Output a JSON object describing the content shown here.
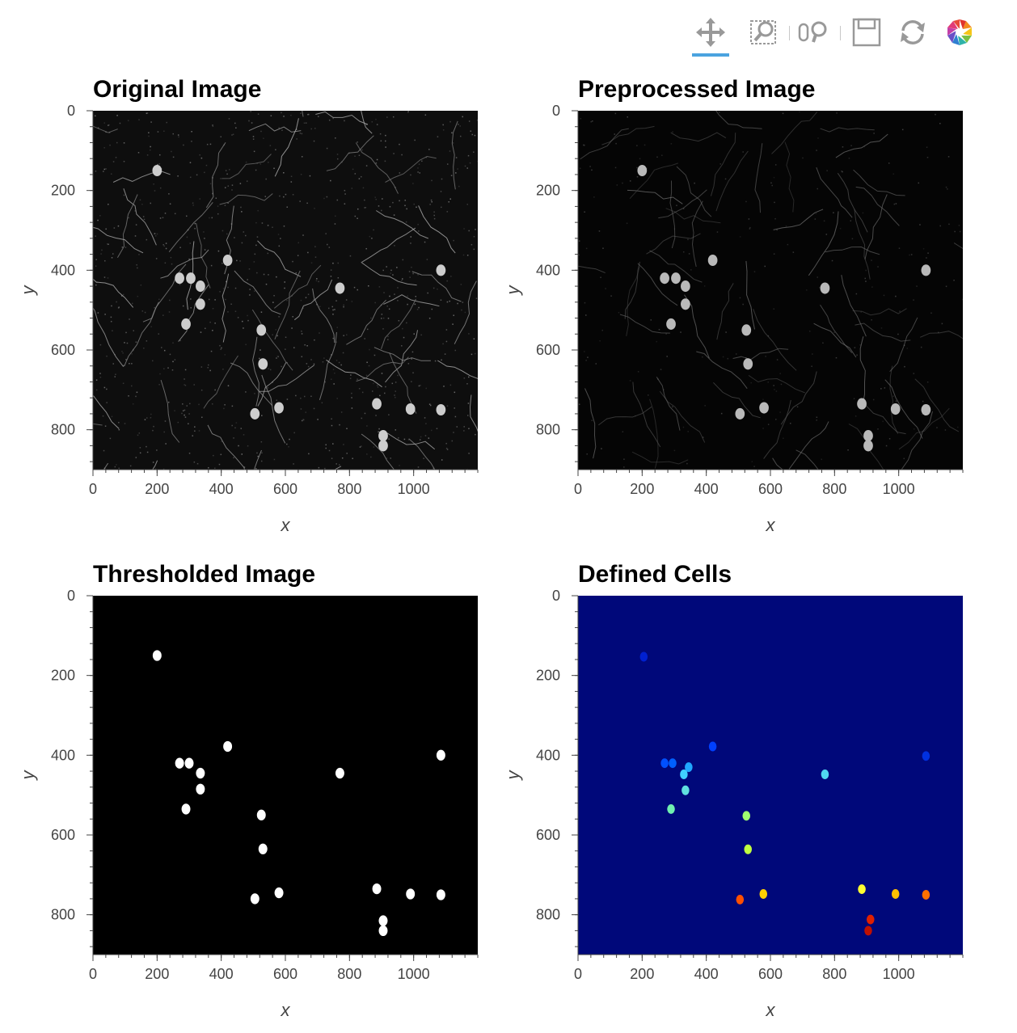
{
  "toolbar": {
    "tools": [
      "pan-tool",
      "box-zoom-tool",
      "wheel-zoom-tool",
      "save-tool",
      "reset-tool",
      "bokeh-logo"
    ],
    "active_tool": "pan-tool",
    "active_color": "#4aa3df",
    "icon_color": "#999999"
  },
  "chart_data": [
    {
      "type": "heatmap",
      "title": "Original Image",
      "xlabel": "x",
      "ylabel": "y",
      "xlim": [
        0,
        1200
      ],
      "ylim": [
        0,
        900
      ],
      "y_inverted": true,
      "xticks": [
        0,
        200,
        400,
        600,
        800,
        1000
      ],
      "yticks": [
        0,
        200,
        400,
        600,
        800
      ],
      "colormap": "gray",
      "background": "#0e0e0e",
      "cells": [
        [
          270,
          420
        ],
        [
          305,
          420
        ],
        [
          335,
          440
        ],
        [
          335,
          485
        ],
        [
          290,
          535
        ],
        [
          420,
          375
        ],
        [
          525,
          550
        ],
        [
          530,
          635
        ],
        [
          580,
          745
        ],
        [
          505,
          760
        ],
        [
          770,
          445
        ],
        [
          1085,
          400
        ],
        [
          885,
          735
        ],
        [
          905,
          815
        ],
        [
          905,
          840
        ],
        [
          990,
          748
        ],
        [
          1085,
          750
        ],
        [
          200,
          150
        ]
      ]
    },
    {
      "type": "heatmap",
      "title": "Preprocessed Image",
      "xlabel": "x",
      "ylabel": "y",
      "xlim": [
        0,
        1200
      ],
      "ylim": [
        0,
        900
      ],
      "y_inverted": true,
      "xticks": [
        0,
        200,
        400,
        600,
        800,
        1000
      ],
      "yticks": [
        0,
        200,
        400,
        600,
        800
      ],
      "colormap": "gray",
      "background": "#050505",
      "cells": [
        [
          270,
          420
        ],
        [
          305,
          420
        ],
        [
          335,
          440
        ],
        [
          335,
          485
        ],
        [
          290,
          535
        ],
        [
          420,
          375
        ],
        [
          525,
          550
        ],
        [
          530,
          635
        ],
        [
          580,
          745
        ],
        [
          505,
          760
        ],
        [
          770,
          445
        ],
        [
          1085,
          400
        ],
        [
          885,
          735
        ],
        [
          905,
          815
        ],
        [
          905,
          840
        ],
        [
          990,
          748
        ],
        [
          1085,
          750
        ],
        [
          200,
          150
        ]
      ]
    },
    {
      "type": "heatmap",
      "title": "Thresholded Image",
      "xlabel": "x",
      "ylabel": "y",
      "xlim": [
        0,
        1200
      ],
      "ylim": [
        0,
        900
      ],
      "y_inverted": true,
      "xticks": [
        0,
        200,
        400,
        600,
        800,
        1000
      ],
      "yticks": [
        0,
        200,
        400,
        600,
        800
      ],
      "colormap": "binary",
      "background": "#000000",
      "cells": [
        [
          270,
          420
        ],
        [
          300,
          420
        ],
        [
          335,
          445
        ],
        [
          335,
          485
        ],
        [
          290,
          535
        ],
        [
          420,
          378
        ],
        [
          525,
          550
        ],
        [
          530,
          635
        ],
        [
          580,
          745
        ],
        [
          505,
          760
        ],
        [
          770,
          445
        ],
        [
          1085,
          400
        ],
        [
          885,
          735
        ],
        [
          905,
          815
        ],
        [
          905,
          840
        ],
        [
          990,
          748
        ],
        [
          1085,
          750
        ],
        [
          200,
          150
        ]
      ]
    },
    {
      "type": "heatmap",
      "title": "Defined Cells",
      "xlabel": "x",
      "ylabel": "y",
      "xlim": [
        0,
        1200
      ],
      "ylim": [
        0,
        900
      ],
      "y_inverted": true,
      "xticks": [
        0,
        200,
        400,
        600,
        800,
        1000
      ],
      "yticks": [
        0,
        200,
        400,
        600,
        800
      ],
      "colormap": "jet",
      "background": "#00087a",
      "labels": [
        {
          "x": 205,
          "y": 153,
          "color": "#0020d0"
        },
        {
          "x": 420,
          "y": 378,
          "color": "#0040ff"
        },
        {
          "x": 270,
          "y": 420,
          "color": "#0050ff"
        },
        {
          "x": 295,
          "y": 420,
          "color": "#0060ff"
        },
        {
          "x": 345,
          "y": 430,
          "color": "#20a8ff"
        },
        {
          "x": 330,
          "y": 448,
          "color": "#40d0ff"
        },
        {
          "x": 335,
          "y": 488,
          "color": "#60e0e0"
        },
        {
          "x": 290,
          "y": 535,
          "color": "#70f0b0"
        },
        {
          "x": 525,
          "y": 552,
          "color": "#a0ff70"
        },
        {
          "x": 530,
          "y": 636,
          "color": "#c0ff40"
        },
        {
          "x": 770,
          "y": 448,
          "color": "#50d8f0"
        },
        {
          "x": 1085,
          "y": 402,
          "color": "#0030e0"
        },
        {
          "x": 885,
          "y": 736,
          "color": "#ffff30"
        },
        {
          "x": 990,
          "y": 748,
          "color": "#ffc000"
        },
        {
          "x": 1085,
          "y": 750,
          "color": "#ff7000"
        },
        {
          "x": 578,
          "y": 748,
          "color": "#ffd000"
        },
        {
          "x": 505,
          "y": 762,
          "color": "#ff5000"
        },
        {
          "x": 912,
          "y": 812,
          "color": "#e02000"
        },
        {
          "x": 905,
          "y": 840,
          "color": "#c01000"
        }
      ]
    }
  ]
}
